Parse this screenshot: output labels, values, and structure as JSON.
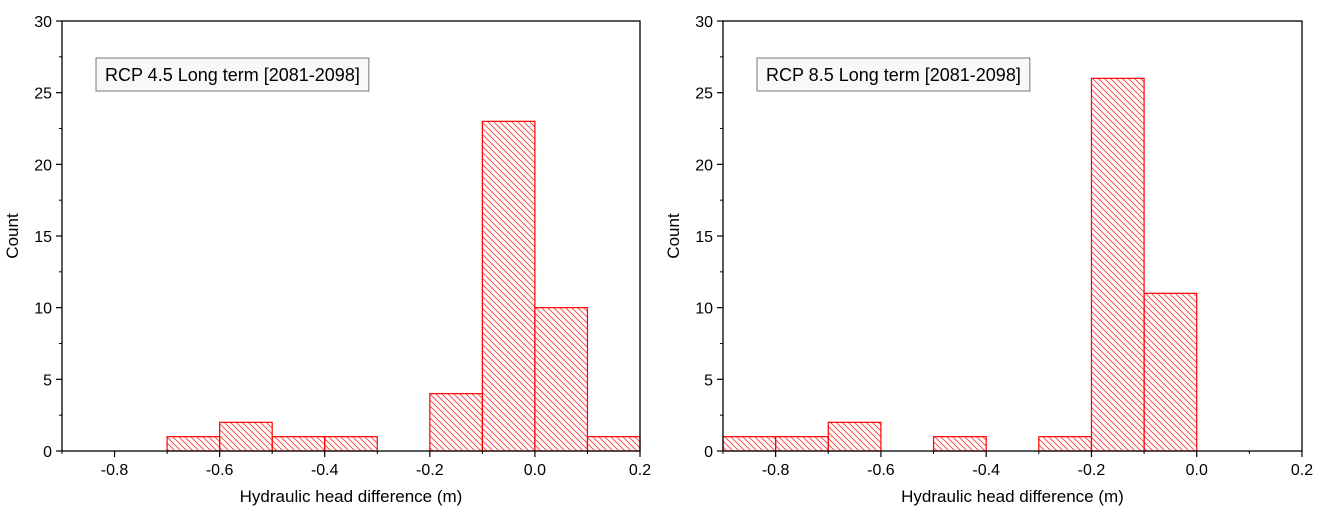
{
  "chart_data": [
    {
      "type": "bar",
      "annotation": "RCP 4.5 Long term [2081-2098]",
      "xlabel": "Hydraulic head difference (m)",
      "ylabel": "Count",
      "xlim": [
        -0.9,
        0.2
      ],
      "ylim": [
        0,
        30
      ],
      "xticks": [
        -0.8,
        -0.6,
        -0.4,
        -0.2,
        0.0,
        0.2
      ],
      "xtick_labels": [
        "-0.8",
        "-0.6",
        "-0.4",
        "-0.2",
        "0.0",
        "0.2"
      ],
      "yticks": [
        0,
        5,
        10,
        15,
        20,
        25,
        30
      ],
      "ytick_labels": [
        "0",
        "5",
        "10",
        "15",
        "20",
        "25",
        "30"
      ],
      "bin_width": 0.1,
      "bins": [
        {
          "start": -0.7,
          "end": -0.6,
          "count": 1
        },
        {
          "start": -0.6,
          "end": -0.5,
          "count": 2
        },
        {
          "start": -0.5,
          "end": -0.4,
          "count": 1
        },
        {
          "start": -0.4,
          "end": -0.3,
          "count": 1
        },
        {
          "start": -0.2,
          "end": -0.1,
          "count": 4
        },
        {
          "start": -0.1,
          "end": 0.0,
          "count": 23
        },
        {
          "start": 0.0,
          "end": 0.1,
          "count": 10
        },
        {
          "start": 0.1,
          "end": 0.2,
          "count": 1
        }
      ],
      "bar_color": "#ff0000",
      "grid": false
    },
    {
      "type": "bar",
      "annotation": "RCP 8.5 Long term [2081-2098]",
      "xlabel": "Hydraulic head difference (m)",
      "ylabel": "Count",
      "xlim": [
        -0.9,
        0.2
      ],
      "ylim": [
        0,
        30
      ],
      "xticks": [
        -0.8,
        -0.6,
        -0.4,
        -0.2,
        0.0,
        0.2
      ],
      "xtick_labels": [
        "-0.8",
        "-0.6",
        "-0.4",
        "-0.2",
        "0.0",
        "0.2"
      ],
      "yticks": [
        0,
        5,
        10,
        15,
        20,
        25,
        30
      ],
      "ytick_labels": [
        "0",
        "5",
        "10",
        "15",
        "20",
        "25",
        "30"
      ],
      "bin_width": 0.1,
      "bins": [
        {
          "start": -0.9,
          "end": -0.8,
          "count": 1
        },
        {
          "start": -0.8,
          "end": -0.7,
          "count": 1
        },
        {
          "start": -0.7,
          "end": -0.6,
          "count": 2
        },
        {
          "start": -0.5,
          "end": -0.4,
          "count": 1
        },
        {
          "start": -0.3,
          "end": -0.2,
          "count": 1
        },
        {
          "start": -0.2,
          "end": -0.1,
          "count": 26
        },
        {
          "start": -0.1,
          "end": 0.0,
          "count": 11
        }
      ],
      "bar_color": "#ff0000",
      "grid": false
    }
  ]
}
